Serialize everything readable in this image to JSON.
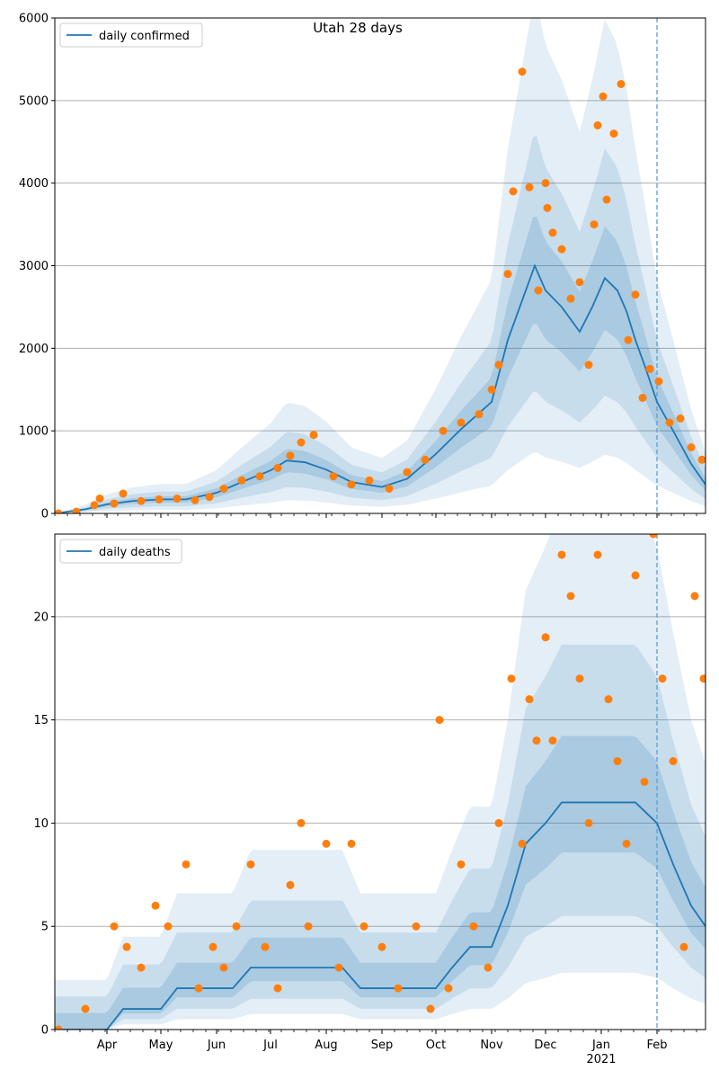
{
  "figure": {
    "title": "Utah 28 days"
  },
  "chart_data": [
    {
      "type": "line",
      "title": "Utah 28 days",
      "legend": {
        "location": "top-left",
        "entries": [
          "daily confirmed"
        ]
      },
      "grid": "horizontal",
      "xlim": [
        "2020-03-03",
        "2021-02-28"
      ],
      "ylim": [
        0,
        6000
      ],
      "yticks": [
        0,
        1000,
        2000,
        3000,
        4000,
        5000,
        6000
      ],
      "forecast_start": "2021-02-01",
      "xtick_labels": [
        {
          "date": "2020-04-01",
          "label": "Apr",
          "sub": ""
        },
        {
          "date": "2020-05-01",
          "label": "May",
          "sub": ""
        },
        {
          "date": "2020-06-01",
          "label": "Jun",
          "sub": ""
        },
        {
          "date": "2020-07-01",
          "label": "Jul",
          "sub": ""
        },
        {
          "date": "2020-08-01",
          "label": "Aug",
          "sub": ""
        },
        {
          "date": "2020-09-01",
          "label": "Sep",
          "sub": ""
        },
        {
          "date": "2020-10-01",
          "label": "Oct",
          "sub": ""
        },
        {
          "date": "2020-11-01",
          "label": "Nov",
          "sub": ""
        },
        {
          "date": "2020-12-01",
          "label": "Dec",
          "sub": ""
        },
        {
          "date": "2021-01-01",
          "label": "Jan",
          "sub": "2021"
        },
        {
          "date": "2021-02-01",
          "label": "Feb",
          "sub": ""
        }
      ],
      "series": [
        {
          "name": "daily confirmed",
          "color": "#1f77b4",
          "kind": "line",
          "x": [
            "2020-03-03",
            "2020-03-20",
            "2020-04-01",
            "2020-04-15",
            "2020-05-01",
            "2020-05-15",
            "2020-06-01",
            "2020-06-15",
            "2020-07-01",
            "2020-07-10",
            "2020-07-20",
            "2020-08-01",
            "2020-08-15",
            "2020-09-01",
            "2020-09-15",
            "2020-10-01",
            "2020-10-15",
            "2020-11-01",
            "2020-11-10",
            "2020-11-20",
            "2020-11-25",
            "2020-12-01",
            "2020-12-10",
            "2020-12-20",
            "2020-12-27",
            "2021-01-03",
            "2021-01-10",
            "2021-01-15",
            "2021-01-20",
            "2021-01-25",
            "2021-02-01",
            "2021-02-10",
            "2021-02-20",
            "2021-02-28"
          ],
          "y": [
            0,
            50,
            110,
            150,
            170,
            170,
            250,
            380,
            520,
            640,
            620,
            530,
            380,
            320,
            420,
            720,
            1020,
            1350,
            2100,
            2700,
            3000,
            2700,
            2500,
            2200,
            2500,
            2850,
            2700,
            2450,
            2100,
            1800,
            1350,
            1000,
            600,
            350
          ]
        },
        {
          "name": "daily confirmed (observed)",
          "color": "#ff7f0e",
          "kind": "scatter",
          "x": [
            "2020-03-05",
            "2020-03-15",
            "2020-03-25",
            "2020-03-28",
            "2020-04-05",
            "2020-04-10",
            "2020-04-20",
            "2020-04-30",
            "2020-05-10",
            "2020-05-20",
            "2020-05-28",
            "2020-06-05",
            "2020-06-15",
            "2020-06-25",
            "2020-07-05",
            "2020-07-12",
            "2020-07-18",
            "2020-07-25",
            "2020-08-05",
            "2020-08-15",
            "2020-08-25",
            "2020-09-05",
            "2020-09-15",
            "2020-09-25",
            "2020-10-05",
            "2020-10-15",
            "2020-10-25",
            "2020-11-01",
            "2020-11-05",
            "2020-11-10",
            "2020-11-13",
            "2020-11-18",
            "2020-11-22",
            "2020-11-27",
            "2020-12-01",
            "2020-12-02",
            "2020-12-05",
            "2020-12-10",
            "2020-12-15",
            "2020-12-20",
            "2020-12-25",
            "2020-12-28",
            "2020-12-30",
            "2021-01-02",
            "2021-01-04",
            "2021-01-08",
            "2021-01-12",
            "2021-01-16",
            "2021-01-20",
            "2021-01-24",
            "2021-01-28",
            "2021-02-02",
            "2021-02-08",
            "2021-02-14",
            "2021-02-20",
            "2021-02-26"
          ],
          "y": [
            0,
            20,
            100,
            180,
            120,
            240,
            150,
            170,
            180,
            160,
            200,
            300,
            400,
            450,
            550,
            700,
            860,
            950,
            450,
            350,
            400,
            300,
            500,
            650,
            1000,
            1100,
            1200,
            1500,
            1800,
            2900,
            3900,
            5350,
            3950,
            2700,
            4000,
            3700,
            3400,
            3200,
            2600,
            2800,
            1800,
            3500,
            4700,
            5050,
            3800,
            4600,
            5200,
            2100,
            2650,
            1400,
            1750,
            1600,
            1100,
            1150,
            800,
            650
          ]
        }
      ]
    },
    {
      "type": "line",
      "title": "",
      "legend": {
        "location": "top-left",
        "entries": [
          "daily deaths"
        ]
      },
      "grid": "horizontal",
      "xlim": [
        "2020-03-03",
        "2021-02-28"
      ],
      "ylim": [
        0,
        24
      ],
      "yticks": [
        0,
        5,
        10,
        15,
        20
      ],
      "forecast_start": "2021-02-01",
      "xtick_labels": [
        {
          "date": "2020-04-01",
          "label": "Apr",
          "sub": ""
        },
        {
          "date": "2020-05-01",
          "label": "May",
          "sub": ""
        },
        {
          "date": "2020-06-01",
          "label": "Jun",
          "sub": ""
        },
        {
          "date": "2020-07-01",
          "label": "Jul",
          "sub": ""
        },
        {
          "date": "2020-08-01",
          "label": "Aug",
          "sub": ""
        },
        {
          "date": "2020-09-01",
          "label": "Sep",
          "sub": ""
        },
        {
          "date": "2020-10-01",
          "label": "Oct",
          "sub": ""
        },
        {
          "date": "2020-11-01",
          "label": "Nov",
          "sub": ""
        },
        {
          "date": "2020-12-01",
          "label": "Dec",
          "sub": ""
        },
        {
          "date": "2021-01-01",
          "label": "Jan",
          "sub": "2021"
        },
        {
          "date": "2021-02-01",
          "label": "Feb",
          "sub": ""
        }
      ],
      "series": [
        {
          "name": "daily deaths",
          "color": "#1f77b4",
          "kind": "line",
          "x": [
            "2020-03-03",
            "2020-04-01",
            "2020-04-10",
            "2020-04-20",
            "2020-05-01",
            "2020-05-10",
            "2020-05-20",
            "2020-06-01",
            "2020-06-10",
            "2020-06-20",
            "2020-07-01",
            "2020-07-10",
            "2020-07-20",
            "2020-08-01",
            "2020-08-10",
            "2020-08-20",
            "2020-09-01",
            "2020-09-15",
            "2020-10-01",
            "2020-10-10",
            "2020-10-20",
            "2020-11-01",
            "2020-11-10",
            "2020-11-20",
            "2020-12-01",
            "2020-12-10",
            "2020-12-20",
            "2021-01-01",
            "2021-01-10",
            "2021-01-20",
            "2021-02-01",
            "2021-02-10",
            "2021-02-20",
            "2021-02-28"
          ],
          "y": [
            0,
            0,
            1,
            1,
            1,
            2,
            2,
            2,
            2,
            3,
            3,
            3,
            3,
            3,
            3,
            2,
            2,
            2,
            2,
            3,
            4,
            4,
            6,
            9,
            10,
            11,
            11,
            11,
            11,
            11,
            10,
            8,
            6,
            5
          ]
        },
        {
          "name": "daily deaths (observed)",
          "color": "#ff7f0e",
          "kind": "scatter",
          "x": [
            "2020-03-05",
            "2020-03-20",
            "2020-04-05",
            "2020-04-12",
            "2020-04-20",
            "2020-04-28",
            "2020-05-05",
            "2020-05-15",
            "2020-05-22",
            "2020-05-30",
            "2020-06-05",
            "2020-06-12",
            "2020-06-20",
            "2020-06-28",
            "2020-07-05",
            "2020-07-12",
            "2020-07-18",
            "2020-07-22",
            "2020-08-01",
            "2020-08-08",
            "2020-08-15",
            "2020-08-22",
            "2020-09-01",
            "2020-09-10",
            "2020-09-20",
            "2020-09-28",
            "2020-10-03",
            "2020-10-08",
            "2020-10-15",
            "2020-10-22",
            "2020-10-30",
            "2020-11-05",
            "2020-11-12",
            "2020-11-18",
            "2020-11-22",
            "2020-11-26",
            "2020-12-01",
            "2020-12-05",
            "2020-12-10",
            "2020-12-15",
            "2020-12-20",
            "2020-12-25",
            "2020-12-30",
            "2021-01-05",
            "2021-01-10",
            "2021-01-15",
            "2021-01-20",
            "2021-01-25",
            "2021-01-30",
            "2021-02-04",
            "2021-02-10",
            "2021-02-16",
            "2021-02-22",
            "2021-02-27"
          ],
          "y": [
            0,
            1,
            5,
            4,
            3,
            6,
            5,
            8,
            2,
            4,
            3,
            5,
            8,
            4,
            2,
            7,
            10,
            5,
            9,
            3,
            9,
            5,
            4,
            2,
            5,
            1,
            15,
            2,
            8,
            5,
            3,
            10,
            17,
            9,
            16,
            14,
            19,
            14,
            23,
            21,
            17,
            10,
            23,
            16,
            13,
            9,
            22,
            12,
            24,
            17,
            13,
            4,
            21,
            17
          ]
        }
      ]
    }
  ]
}
